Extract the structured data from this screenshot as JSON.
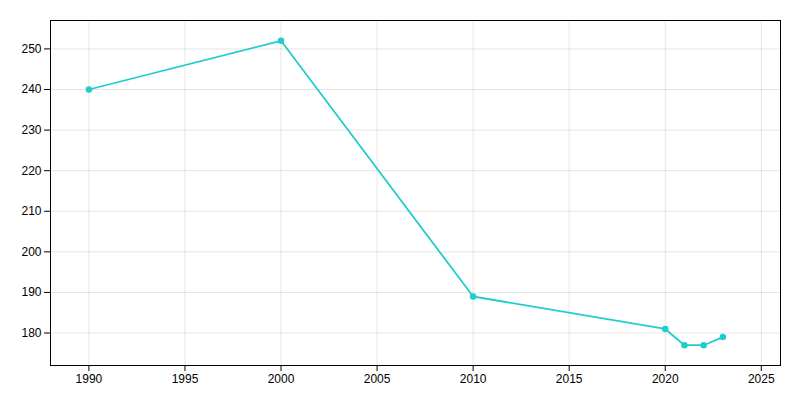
{
  "chart_data": {
    "type": "line",
    "x": [
      1990,
      2000,
      2010,
      2020,
      2021,
      2022,
      2023
    ],
    "values": [
      240,
      252,
      189,
      181,
      177,
      177,
      179
    ],
    "color": "#22CCCC",
    "marker": "circle",
    "xlim": [
      1988,
      2026
    ],
    "ylim": [
      172,
      257
    ],
    "xticks": [
      1990,
      1995,
      2000,
      2005,
      2010,
      2015,
      2020,
      2025
    ],
    "yticks": [
      180,
      190,
      200,
      210,
      220,
      230,
      240,
      250
    ],
    "grid": true
  }
}
